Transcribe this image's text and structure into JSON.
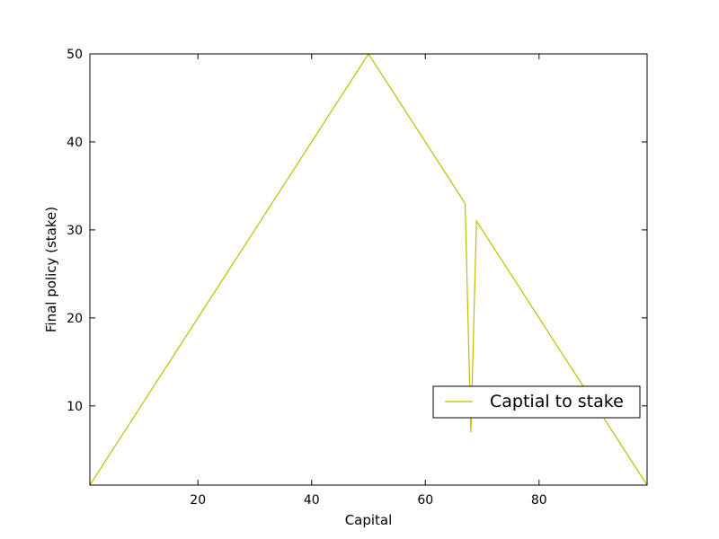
{
  "chart_data": {
    "type": "line",
    "xlabel": "Capital",
    "ylabel": "Final policy (stake)",
    "xlim": [
      1,
      99
    ],
    "ylim": [
      1,
      50
    ],
    "grid": false,
    "legend_position": "lower-right",
    "series": [
      {
        "name": "Captial to stake",
        "color": "#bfbf00",
        "x": [
          1,
          50,
          67,
          68,
          69,
          99
        ],
        "y": [
          1,
          50,
          33,
          7,
          31,
          1
        ]
      }
    ],
    "x_ticks": [
      20,
      40,
      60,
      80
    ],
    "y_ticks": [
      10,
      20,
      30,
      40,
      50
    ]
  }
}
